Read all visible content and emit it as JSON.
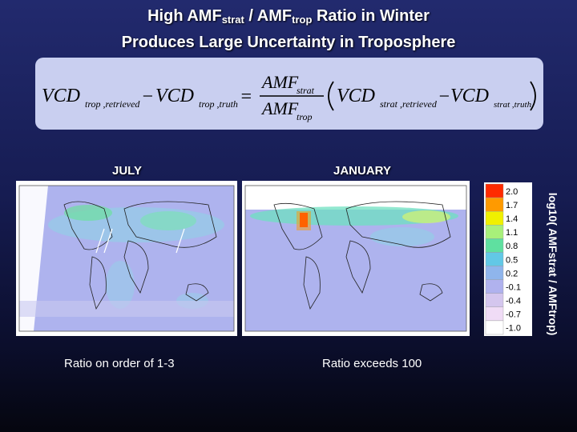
{
  "title": {
    "part1": "High AMF",
    "sub1": "strat",
    "part2": " / AMF",
    "sub2": "trop",
    "part3": " Ratio in Winter",
    "line2": "Produces Large Uncertainty in Troposphere"
  },
  "equation": {
    "vcd": "VCD",
    "amf": "AMF",
    "trop_retrieved": "trop ,retrieved",
    "trop_truth": "trop ,truth",
    "strat_retrieved": "strat ,retrieved",
    "strat_truth": "strat ,truth",
    "strat": "strat",
    "trop": "trop",
    "minus": "−",
    "equals": "="
  },
  "maps": [
    {
      "label": "JULY",
      "caption": "Ratio on order of 1-3"
    },
    {
      "label": "JANUARY",
      "caption": "Ratio exceeds 100"
    }
  ],
  "colorbar": {
    "title": "log10( AMFstrat / AMFtrop)",
    "ticks": [
      "2.0",
      "1.7",
      "1.4",
      "1.1",
      "0.8",
      "0.5",
      "0.2",
      "-0.1",
      "-0.4",
      "-0.7",
      "-1.0"
    ],
    "colors": [
      "#ff2a00",
      "#ff9a00",
      "#f0f000",
      "#a8f07a",
      "#5fe0a0",
      "#62c8e6",
      "#8fb5ec",
      "#b0b2ee",
      "#d4c6ee",
      "#f0dcf6",
      "#ffffff"
    ]
  }
}
